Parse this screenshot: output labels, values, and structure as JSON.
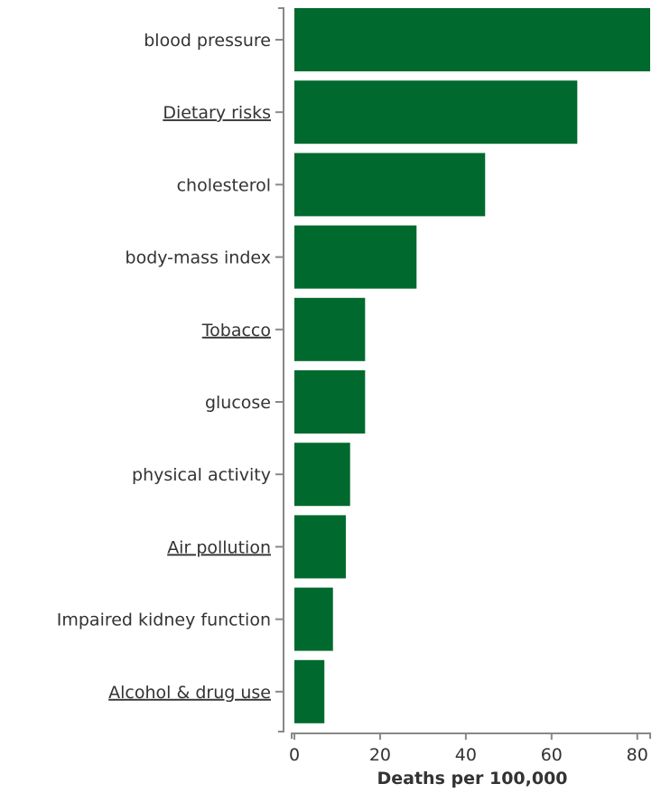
{
  "chart_data": {
    "type": "bar",
    "orientation": "horizontal",
    "categories": [
      "blood pressure",
      "Dietary risks",
      "cholesterol",
      "body-mass index",
      "Tobacco",
      "glucose",
      "physical activity",
      "Air pollution",
      "Impaired kidney function",
      "Alcohol & drug use"
    ],
    "linked_categories": [
      "Dietary risks",
      "Tobacco",
      "Air pollution",
      "Alcohol & drug use"
    ],
    "values": [
      83,
      66,
      44.5,
      28.5,
      16.5,
      16.5,
      13,
      12,
      9,
      7
    ],
    "xlabel": "Deaths per 100,000",
    "ylabel": "",
    "xlim": [
      0,
      83
    ],
    "xticks": [
      0,
      20,
      40,
      60,
      80
    ],
    "bar_color": "#006a2e",
    "axis_color": "#888888",
    "text_color": "#333333",
    "grid": false,
    "legend": "none"
  }
}
